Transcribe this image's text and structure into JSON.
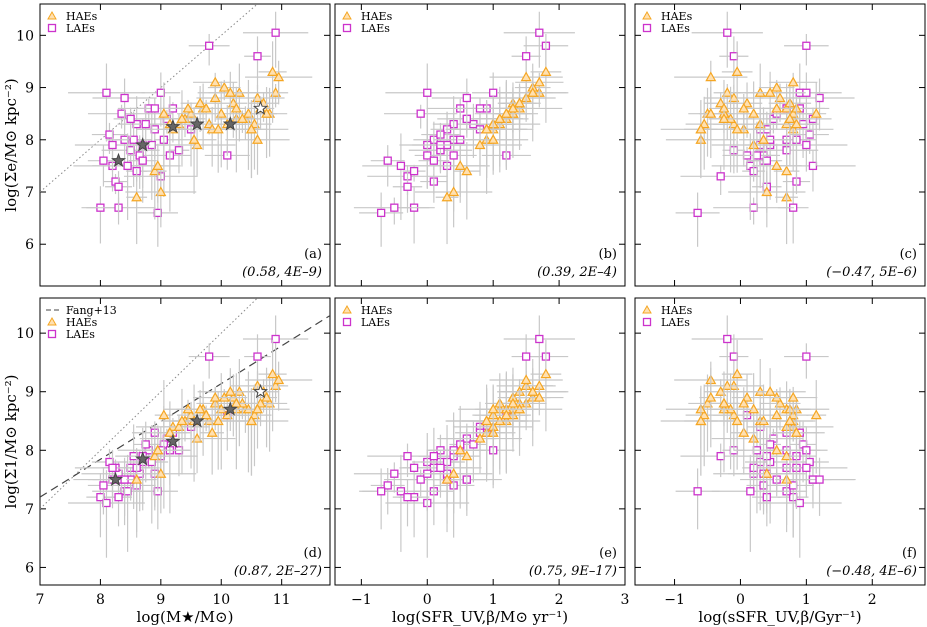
{
  "colors": {
    "hae": "#f5a623",
    "lae": "#cc33cc",
    "err": "#c8c8c8",
    "star": "#666666"
  },
  "chart_data": {
    "type": "scatter",
    "x_axes": [
      {
        "label": "log(M★/M⊙)",
        "range": [
          7,
          11.8
        ],
        "ticks": [
          "7",
          "8",
          "9",
          "10",
          "11"
        ],
        "tick_values": [
          7,
          8,
          9,
          10,
          11
        ]
      },
      {
        "label": "log(SFR_UV,β/M⊙ yr⁻¹)",
        "range": [
          -1.4,
          3.0
        ],
        "ticks": [
          "−1",
          "0",
          "1",
          "2",
          "3"
        ],
        "tick_values": [
          -1,
          0,
          1,
          2,
          3
        ]
      },
      {
        "label": "log(sSFR_UV,β/Gyr⁻¹)",
        "range": [
          -1.6,
          2.8
        ],
        "ticks": [
          "−1",
          "0",
          "1",
          "2"
        ],
        "tick_values": [
          -1,
          0,
          1,
          2
        ]
      }
    ],
    "y_axes": [
      {
        "label": "log(Σe/M⊙ kpc⁻²)",
        "range": [
          5.2,
          10.6
        ],
        "ticks": [
          "6",
          "7",
          "8",
          "9",
          "10"
        ],
        "tick_values": [
          6,
          7,
          8,
          9,
          10
        ]
      },
      {
        "label": "log(Σ1/M⊙ kpc⁻²)",
        "range": [
          5.7,
          10.6
        ],
        "ticks": [
          "6",
          "7",
          "8",
          "9",
          "10"
        ],
        "tick_values": [
          6,
          7,
          8,
          9,
          10
        ]
      }
    ],
    "panels": [
      {
        "id": "a",
        "row": 0,
        "col": 0,
        "letter": "(a)",
        "corr": "(0.58, 4E–9)",
        "legend": [
          "HAEs",
          "LAEs"
        ],
        "one_to_one": true,
        "stars": [
          [
            8.3,
            7.6
          ],
          [
            8.7,
            7.9
          ],
          [
            9.2,
            8.25
          ],
          [
            9.6,
            8.3
          ],
          [
            10.15,
            8.3
          ],
          [
            10.65,
            8.6
          ]
        ]
      },
      {
        "id": "b",
        "row": 0,
        "col": 1,
        "letter": "(b)",
        "corr": "(0.39, 2E–4)",
        "legend": [
          "HAEs",
          "LAEs"
        ]
      },
      {
        "id": "c",
        "row": 0,
        "col": 2,
        "letter": "(c)",
        "corr": "(−0.47, 5E–6)",
        "legend": [
          "HAEs",
          "LAEs"
        ]
      },
      {
        "id": "d",
        "row": 1,
        "col": 0,
        "letter": "(d)",
        "corr": "(0.87, 2E–27)",
        "legend": [
          "Fang+13",
          "HAEs",
          "LAEs"
        ],
        "one_to_one": true,
        "fang": [
          [
            7,
            7.2
          ],
          [
            11.8,
            10.3
          ]
        ],
        "stars": [
          [
            8.25,
            7.5
          ],
          [
            8.7,
            7.85
          ],
          [
            9.2,
            8.15
          ],
          [
            9.6,
            8.5
          ],
          [
            10.15,
            8.7
          ],
          [
            10.65,
            9.0
          ]
        ]
      },
      {
        "id": "e",
        "row": 1,
        "col": 1,
        "letter": "(e)",
        "corr": "(0.75, 9E–17)",
        "legend": [
          "HAEs",
          "LAEs"
        ]
      },
      {
        "id": "f",
        "row": 1,
        "col": 2,
        "letter": "(f)",
        "corr": "(−0.48, 4E–6)",
        "legend": [
          "HAEs",
          "LAEs"
        ]
      }
    ],
    "hae_mass": [
      9.2,
      9.4,
      9.5,
      9.6,
      9.7,
      9.8,
      9.9,
      10.0,
      10.1,
      10.2,
      10.3,
      10.4,
      10.5,
      10.6,
      10.7,
      10.8,
      10.9,
      10.95,
      9.0,
      9.3,
      9.45,
      9.85,
      10.05,
      10.25,
      10.45,
      10.65,
      8.6,
      8.9,
      9.15,
      9.55,
      9.75,
      10.15,
      10.35,
      10.55,
      10.85,
      9.65,
      9.95,
      10.75,
      8.95,
      9.35,
      10.6,
      9.05,
      10.5,
      9.9,
      10.25
    ],
    "hae_sigE": [
      8.2,
      8.4,
      8.5,
      7.9,
      8.6,
      8.3,
      8.8,
      8.5,
      8.3,
      8.7,
      8.9,
      8.4,
      8.2,
      8.8,
      8.7,
      8.5,
      8.9,
      9.2,
      7.0,
      8.3,
      8.6,
      8.2,
      9.0,
      8.4,
      8.5,
      8.6,
      6.9,
      7.4,
      8.3,
      8.0,
      8.6,
      8.9,
      8.4,
      8.3,
      9.3,
      8.7,
      8.2,
      8.5,
      7.5,
      8.4,
      8.0,
      8.5,
      8.2,
      9.1,
      8.6
    ],
    "hae_sig1": [
      8.4,
      8.5,
      8.6,
      8.2,
      8.7,
      8.5,
      8.8,
      8.7,
      8.6,
      8.9,
      9.0,
      8.7,
      8.5,
      9.1,
      9.0,
      8.8,
      9.1,
      9.2,
      7.6,
      8.4,
      8.7,
      8.3,
      8.9,
      8.7,
      8.7,
      8.8,
      7.5,
      7.9,
      8.3,
      8.5,
      8.6,
      9.0,
      8.8,
      8.6,
      9.3,
      8.7,
      8.5,
      8.9,
      8.0,
      8.5,
      8.7,
      8.6,
      8.5,
      8.9,
      8.8
    ],
    "hae_sfr": [
      1.0,
      1.2,
      1.3,
      0.8,
      1.4,
      1.1,
      1.5,
      1.2,
      1.0,
      1.3,
      1.6,
      1.2,
      0.9,
      1.5,
      1.4,
      1.3,
      1.7,
      1.5,
      0.4,
      1.0,
      1.3,
      0.9,
      1.6,
      1.1,
      1.2,
      1.4,
      0.3,
      0.6,
      1.0,
      0.9,
      1.3,
      1.6,
      1.1,
      1.0,
      1.8,
      1.4,
      0.9,
      1.3,
      0.5,
      1.1,
      1.0,
      1.2,
      0.9,
      1.7,
      1.3
    ],
    "lae_mass": [
      8.0,
      8.1,
      8.2,
      8.3,
      8.4,
      8.5,
      8.6,
      8.7,
      8.8,
      8.9,
      9.0,
      9.1,
      8.05,
      8.15,
      8.25,
      8.35,
      8.45,
      8.55,
      8.65,
      8.75,
      8.85,
      8.95,
      9.05,
      9.2,
      9.3,
      9.5,
      9.8,
      10.1,
      10.6,
      10.9,
      8.3,
      8.5,
      8.7,
      9.0,
      8.2,
      8.6,
      8.9,
      9.15,
      8.4
    ],
    "lae_sigE": [
      6.7,
      8.9,
      7.5,
      6.7,
      8.0,
      7.8,
      8.3,
      7.9,
      8.6,
      8.2,
      7.3,
      8.4,
      7.6,
      8.1,
      7.2,
      8.5,
      7.5,
      8.0,
      7.7,
      8.3,
      7.9,
      6.6,
      8.0,
      8.6,
      7.8,
      8.2,
      9.8,
      7.7,
      9.6,
      10.05,
      7.1,
      8.4,
      7.6,
      8.9,
      7.9,
      7.4,
      8.6,
      7.7,
      8.8
    ],
    "lae_sig1": [
      7.2,
      7.1,
      7.5,
      7.6,
      7.3,
      7.7,
      7.4,
      7.8,
      8.0,
      7.6,
      7.9,
      8.2,
      7.4,
      7.8,
      7.7,
      7.5,
      7.3,
      7.9,
      7.6,
      8.1,
      7.8,
      7.3,
      8.1,
      8.3,
      8.0,
      8.4,
      9.6,
      8.6,
      9.6,
      9.9,
      7.2,
      7.5,
      7.9,
      8.0,
      7.7,
      7.7,
      8.3,
      8.0,
      7.5
    ],
    "lae_sfr": [
      -0.2,
      0.0,
      0.3,
      -0.5,
      0.1,
      0.2,
      0.4,
      0.0,
      0.5,
      0.3,
      -0.3,
      0.6,
      -0.6,
      0.2,
      0.1,
      -0.1,
      -0.4,
      0.4,
      0.0,
      0.7,
      0.3,
      -0.7,
      0.5,
      0.9,
      0.2,
      0.8,
      1.8,
      1.2,
      1.5,
      1.7,
      -0.3,
      0.6,
      0.1,
      1.0,
      0.2,
      -0.2,
      0.8,
      0.4,
      0.6
    ]
  }
}
